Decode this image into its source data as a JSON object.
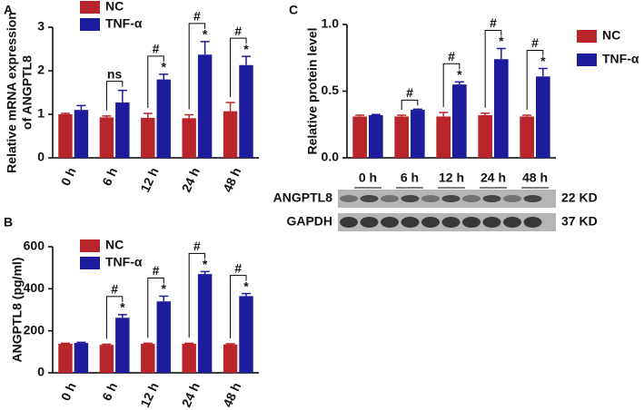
{
  "chart_data": [
    {
      "type": "bar",
      "panel": "A",
      "ylabel": [
        "Relative mRNA expression",
        "of ANGPTL8"
      ],
      "categories": [
        "0 h",
        "6 h",
        "12 h",
        "24 h",
        "48 h"
      ],
      "series": [
        {
          "name": "NC",
          "color": "#b8262b",
          "values": [
            1.0,
            0.93,
            0.92,
            0.91,
            1.07
          ],
          "errors": [
            0.02,
            0.03,
            0.1,
            0.08,
            0.2
          ]
        },
        {
          "name": "TNF-α",
          "color": "#1c1c9c",
          "values": [
            1.1,
            1.27,
            1.8,
            2.37,
            2.13
          ],
          "errors": [
            0.1,
            0.28,
            0.12,
            0.3,
            0.2
          ]
        }
      ],
      "bracket_labels": [
        null,
        "ns",
        "#",
        "#",
        "#"
      ],
      "star_labels": [
        null,
        null,
        "*",
        "*",
        "*"
      ],
      "ylim": [
        0,
        3
      ],
      "yticks": [
        0,
        1,
        2,
        3
      ],
      "legend": "upper left"
    },
    {
      "type": "bar",
      "panel": "B",
      "ylabel": [
        "ANGPTL8 (pg/ml)"
      ],
      "categories": [
        "0 h",
        "6 h",
        "12 h",
        "24 h",
        "48 h"
      ],
      "series": [
        {
          "name": "NC",
          "color": "#b8262b",
          "values": [
            138,
            133,
            138,
            138,
            135
          ],
          "errors": [
            3,
            3,
            3,
            3,
            3
          ]
        },
        {
          "name": "TNF-α",
          "color": "#1c1c9c",
          "values": [
            142,
            262,
            340,
            470,
            365
          ],
          "errors": [
            3,
            15,
            25,
            12,
            12
          ]
        }
      ],
      "bracket_labels": [
        null,
        "#",
        "#",
        "#",
        "#"
      ],
      "star_labels": [
        null,
        "*",
        "*",
        "*",
        "*"
      ],
      "ylim": [
        0,
        600
      ],
      "yticks": [
        0,
        200,
        400,
        600
      ],
      "legend": "upper left"
    },
    {
      "type": "bar",
      "panel": "C",
      "ylabel": [
        "Relative protein level"
      ],
      "categories": [
        "0 h",
        "6 h",
        "12 h",
        "24 h",
        "48 h"
      ],
      "series": [
        {
          "name": "NC",
          "color": "#b8262b",
          "values": [
            0.31,
            0.31,
            0.31,
            0.32,
            0.31
          ],
          "errors": [
            0.01,
            0.01,
            0.03,
            0.015,
            0.01
          ]
        },
        {
          "name": "TNF-α",
          "color": "#1c1c9c",
          "values": [
            0.32,
            0.36,
            0.55,
            0.74,
            0.61
          ],
          "errors": [
            0.005,
            0.005,
            0.02,
            0.08,
            0.06
          ]
        }
      ],
      "bracket_labels": [
        null,
        "#",
        "#",
        "#",
        "#"
      ],
      "star_labels": [
        null,
        null,
        "*",
        "*",
        "*"
      ],
      "ylim": [
        0,
        1.0
      ],
      "yticks": [
        {
          "value": 0,
          "label": "0.0"
        },
        {
          "value": 0.5,
          "label": "0.5"
        },
        {
          "value": 1.0,
          "label": "1.0"
        }
      ],
      "legend": "right"
    }
  ],
  "blot": {
    "rows": [
      {
        "label": "ANGPTL8",
        "size": "22 KD"
      },
      {
        "label": "GAPDH",
        "size": "37 KD"
      }
    ]
  }
}
